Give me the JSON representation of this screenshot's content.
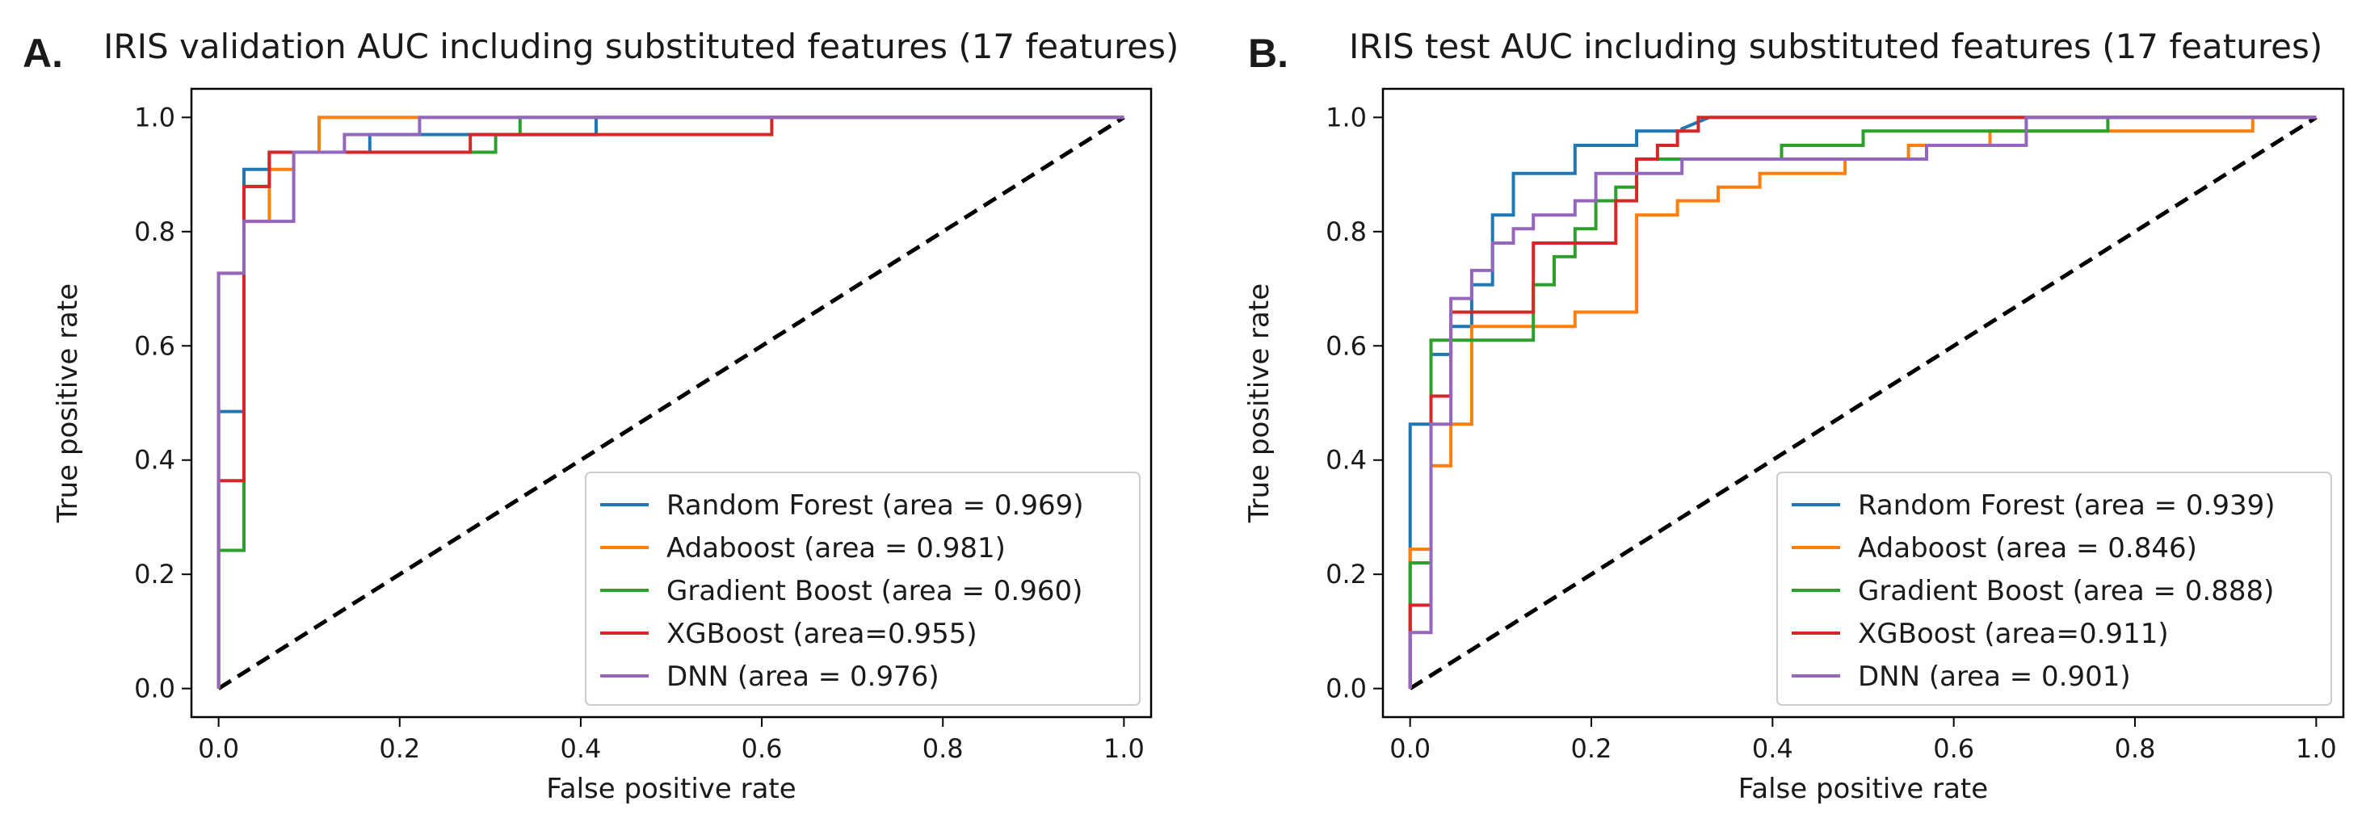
{
  "chart_data": [
    {
      "type": "line",
      "panel_label": "A.",
      "title": "IRIS validation AUC including substituted features (17 features)",
      "xlabel": "False positive rate",
      "ylabel": "True positive rate",
      "xlim": [
        -0.03,
        1.03
      ],
      "ylim": [
        -0.05,
        1.05
      ],
      "xticks": [
        "0.0",
        "0.2",
        "0.4",
        "0.6",
        "0.8",
        "1.0"
      ],
      "yticks": [
        "0.0",
        "0.2",
        "0.4",
        "0.6",
        "0.8",
        "1.0"
      ],
      "legend_position": "lower-right",
      "diagonal": {
        "style": "dashed",
        "color": "#000000",
        "x": [
          0,
          1
        ],
        "y": [
          0,
          1
        ]
      },
      "series": [
        {
          "name": "Random Forest (area = 0.969)",
          "color": "#1f77b4",
          "x": [
            0,
            0,
            0.028,
            0.028,
            0.056,
            0.056,
            0.167,
            0.167,
            0.417,
            0.417,
            1
          ],
          "y": [
            0,
            0.485,
            0.485,
            0.909,
            0.909,
            0.939,
            0.939,
            0.97,
            0.97,
            1.0,
            1.0
          ]
        },
        {
          "name": "Adaboost (area = 0.981)",
          "color": "#ff7f0e",
          "x": [
            0,
            0,
            0.028,
            0.028,
            0.056,
            0.056,
            0.083,
            0.083,
            0.111,
            0.111,
            1
          ],
          "y": [
            0,
            0.727,
            0.727,
            0.818,
            0.818,
            0.909,
            0.909,
            0.939,
            0.939,
            1.0,
            1.0
          ]
        },
        {
          "name": "Gradient Boost (area = 0.960)",
          "color": "#2ca02c",
          "x": [
            0,
            0,
            0.028,
            0.028,
            0.056,
            0.056,
            0.278,
            0.278,
            0.306,
            0.306,
            0.333,
            0.333,
            1
          ],
          "y": [
            0,
            0.242,
            0.242,
            0.879,
            0.879,
            0.939,
            0.939,
            0.939,
            0.939,
            0.97,
            0.97,
            1.0,
            1.0
          ]
        },
        {
          "name": "XGBoost (area=0.955)",
          "color": "#d62728",
          "x": [
            0,
            0,
            0.028,
            0.028,
            0.056,
            0.056,
            0.278,
            0.278,
            0.611,
            0.611,
            1
          ],
          "y": [
            0,
            0.364,
            0.364,
            0.879,
            0.879,
            0.939,
            0.939,
            0.97,
            0.97,
            1.0,
            1.0
          ]
        },
        {
          "name": "DNN (area = 0.976)",
          "color": "#9467bd",
          "x": [
            0,
            0,
            0.028,
            0.028,
            0.083,
            0.083,
            0.139,
            0.139,
            0.222,
            0.222,
            1
          ],
          "y": [
            0,
            0.727,
            0.727,
            0.818,
            0.818,
            0.939,
            0.939,
            0.97,
            0.97,
            1.0,
            1.0
          ]
        }
      ]
    },
    {
      "type": "line",
      "panel_label": "B.",
      "title": "IRIS test AUC including substituted features (17 features)",
      "xlabel": "False positive rate",
      "ylabel": "True positive rate",
      "xlim": [
        -0.03,
        1.03
      ],
      "ylim": [
        -0.05,
        1.05
      ],
      "xticks": [
        "0.0",
        "0.2",
        "0.4",
        "0.6",
        "0.8",
        "1.0"
      ],
      "yticks": [
        "0.0",
        "0.2",
        "0.4",
        "0.6",
        "0.8",
        "1.0"
      ],
      "legend_position": "lower-right",
      "diagonal": {
        "style": "dashed",
        "color": "#000000",
        "x": [
          0,
          1
        ],
        "y": [
          0,
          1
        ]
      },
      "series": [
        {
          "name": "Random Forest (area = 0.939)",
          "color": "#1f77b4",
          "x": [
            0,
            0,
            0.023,
            0.023,
            0.045,
            0.045,
            0.068,
            0.068,
            0.091,
            0.091,
            0.114,
            0.114,
            0.182,
            0.182,
            0.25,
            0.25,
            0.3,
            0.3,
            0.33,
            1
          ],
          "y": [
            0,
            0.463,
            0.463,
            0.585,
            0.585,
            0.634,
            0.634,
            0.707,
            0.707,
            0.829,
            0.829,
            0.902,
            0.902,
            0.951,
            0.951,
            0.976,
            0.976,
            0.98,
            1.0,
            1.0
          ]
        },
        {
          "name": "Adaboost (area = 0.846)",
          "color": "#ff7f0e",
          "x": [
            0,
            0,
            0.023,
            0.023,
            0.045,
            0.045,
            0.068,
            0.068,
            0.182,
            0.182,
            0.25,
            0.25,
            0.295,
            0.295,
            0.34,
            0.34,
            0.386,
            0.386,
            0.48,
            0.48,
            0.55,
            0.55,
            0.64,
            0.64,
            0.93,
            0.93,
            1
          ],
          "y": [
            0,
            0.244,
            0.244,
            0.39,
            0.39,
            0.463,
            0.463,
            0.634,
            0.634,
            0.659,
            0.659,
            0.829,
            0.829,
            0.854,
            0.854,
            0.878,
            0.878,
            0.902,
            0.902,
            0.927,
            0.927,
            0.951,
            0.951,
            0.976,
            0.976,
            1.0,
            1.0
          ]
        },
        {
          "name": "Gradient Boost (area = 0.888)",
          "color": "#2ca02c",
          "x": [
            0,
            0,
            0.023,
            0.023,
            0.045,
            0.045,
            0.136,
            0.136,
            0.159,
            0.159,
            0.182,
            0.182,
            0.205,
            0.205,
            0.227,
            0.227,
            0.25,
            0.25,
            0.41,
            0.41,
            0.5,
            0.5,
            0.77,
            0.77,
            1
          ],
          "y": [
            0,
            0.22,
            0.22,
            0.61,
            0.61,
            0.61,
            0.61,
            0.707,
            0.707,
            0.756,
            0.756,
            0.805,
            0.805,
            0.854,
            0.854,
            0.878,
            0.878,
            0.927,
            0.927,
            0.951,
            0.951,
            0.976,
            0.976,
            1.0,
            1.0
          ]
        },
        {
          "name": "XGBoost (area=0.911)",
          "color": "#d62728",
          "x": [
            0,
            0,
            0.023,
            0.023,
            0.045,
            0.045,
            0.136,
            0.136,
            0.227,
            0.227,
            0.25,
            0.25,
            0.273,
            0.273,
            0.295,
            0.295,
            0.318,
            0.318,
            1
          ],
          "y": [
            0,
            0.146,
            0.146,
            0.512,
            0.512,
            0.659,
            0.659,
            0.78,
            0.78,
            0.854,
            0.854,
            0.927,
            0.927,
            0.951,
            0.951,
            0.976,
            0.976,
            1.0,
            1.0
          ]
        },
        {
          "name": "DNN (area = 0.901)",
          "color": "#9467bd",
          "x": [
            0,
            0,
            0.023,
            0.023,
            0.045,
            0.045,
            0.068,
            0.068,
            0.091,
            0.091,
            0.114,
            0.114,
            0.136,
            0.136,
            0.182,
            0.182,
            0.205,
            0.205,
            0.3,
            0.3,
            0.57,
            0.57,
            0.68,
            0.68,
            1
          ],
          "y": [
            0,
            0.098,
            0.098,
            0.463,
            0.463,
            0.683,
            0.683,
            0.732,
            0.732,
            0.78,
            0.78,
            0.805,
            0.805,
            0.829,
            0.829,
            0.854,
            0.854,
            0.902,
            0.902,
            0.927,
            0.927,
            0.951,
            0.951,
            1.0,
            1.0
          ]
        }
      ]
    }
  ]
}
